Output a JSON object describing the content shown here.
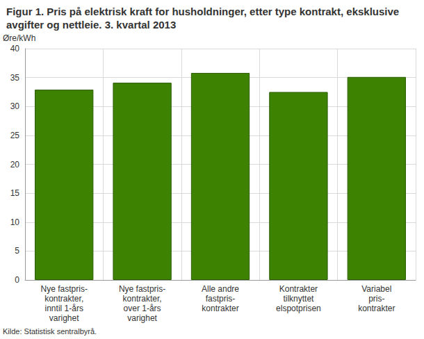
{
  "chart_data": {
    "type": "bar",
    "title": "Figur 1. Pris på elektrisk kraft for husholdninger, etter type kontrakt, eksklusive avgifter og nettleie. 3. kvartal 2013",
    "y_label": "Øre/kWh",
    "annotations": [
      "Kilde: Statistisk sentralbyrå."
    ],
    "categories": [
      "Nye fastpris-\nkontrakter,\ninntil 1-års\nvarighet",
      "Nye fastpris-\nkontrakter,\nover 1-års\nvarighet",
      "Alle andre\nfastpris-\nkontrakter",
      "Kontrakter\ntilknyttet\nelspotprisen",
      "Variabel\npris-\nkontrakter"
    ],
    "values": [
      32.9,
      34.1,
      35.8,
      32.5,
      35.1
    ],
    "color": "#3d8200",
    "ylim": [
      0,
      40
    ],
    "yticks": [
      0,
      5,
      10,
      15,
      20,
      25,
      30,
      35,
      40
    ],
    "grid": true
  }
}
